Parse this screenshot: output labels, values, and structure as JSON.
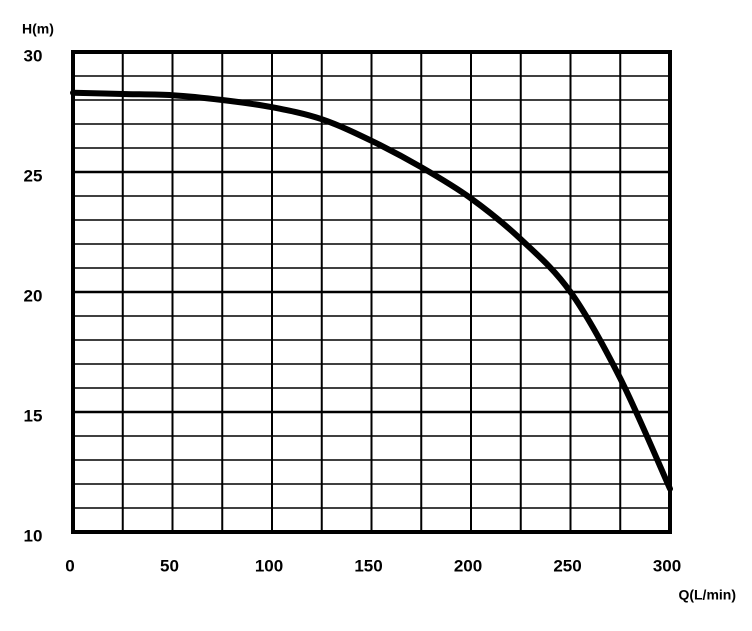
{
  "chart_data": {
    "type": "line",
    "x_label": "Q(L/min)",
    "y_label": "H(m)",
    "x": [
      0,
      25,
      50,
      75,
      100,
      125,
      150,
      175,
      200,
      225,
      250,
      275,
      300
    ],
    "series": [
      {
        "name": "H",
        "color": "#000000",
        "values": [
          28.3,
          28.25,
          28.2,
          28.0,
          27.7,
          27.2,
          26.3,
          25.2,
          23.9,
          22.2,
          20.0,
          16.4,
          11.8
        ]
      }
    ],
    "xlim": [
      0,
      300
    ],
    "ylim": [
      10,
      30
    ],
    "xticks": [
      0,
      50,
      100,
      150,
      200,
      250,
      300
    ],
    "yticks": [
      10,
      15,
      20,
      25,
      30
    ],
    "x_minor_ticks": [
      25,
      75,
      125,
      175,
      225,
      275
    ],
    "y_minor_ticks": [
      11,
      12,
      13,
      14,
      16,
      17,
      18,
      19,
      21,
      22,
      23,
      24,
      26,
      27,
      28,
      29
    ],
    "grid": true
  }
}
